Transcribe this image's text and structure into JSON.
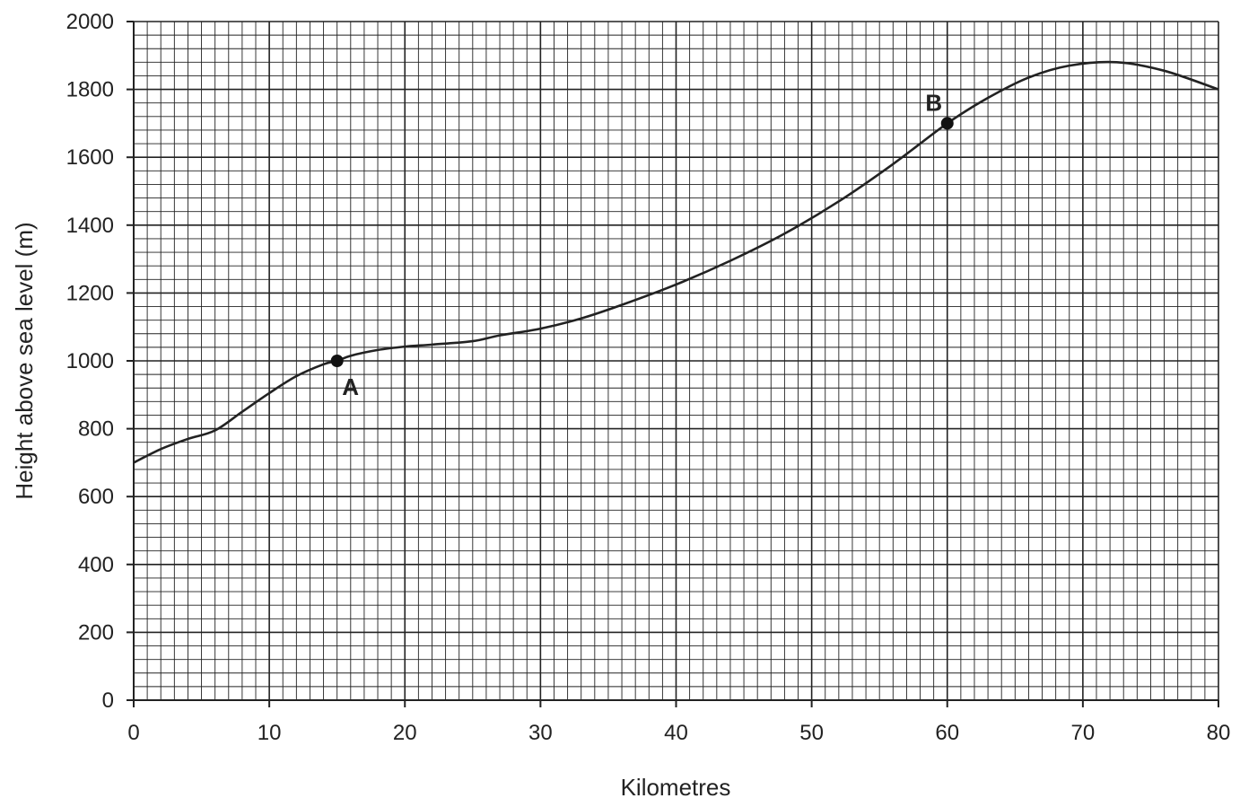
{
  "chart_data": {
    "type": "line",
    "title": "",
    "xlabel": "Kilometres",
    "ylabel": "Height above sea level (m)",
    "xlim": [
      0,
      80
    ],
    "ylim": [
      0,
      2000
    ],
    "x_ticks": [
      0,
      10,
      20,
      30,
      40,
      50,
      60,
      70,
      80
    ],
    "y_ticks": [
      0,
      200,
      400,
      600,
      800,
      1000,
      1200,
      1400,
      1600,
      1800,
      2000
    ],
    "x_minor_step": 1,
    "y_minor_step": 40,
    "grid": true,
    "series": [
      {
        "x": [
          0,
          2,
          4,
          6,
          8,
          10,
          12,
          14,
          15,
          16,
          18,
          20,
          22,
          25,
          27,
          30,
          33,
          36,
          40,
          44,
          48,
          52,
          56,
          60,
          63,
          66,
          69,
          72.5,
          76,
          80
        ],
        "y": [
          700,
          740,
          770,
          795,
          850,
          905,
          955,
          990,
          1000,
          1015,
          1032,
          1042,
          1048,
          1058,
          1075,
          1095,
          1125,
          1165,
          1225,
          1295,
          1375,
          1470,
          1580,
          1700,
          1775,
          1835,
          1870,
          1880,
          1855,
          1800
        ]
      }
    ],
    "points": [
      {
        "label": "A",
        "x": 15,
        "y": 1000
      },
      {
        "label": "B",
        "x": 60,
        "y": 1700
      }
    ]
  }
}
